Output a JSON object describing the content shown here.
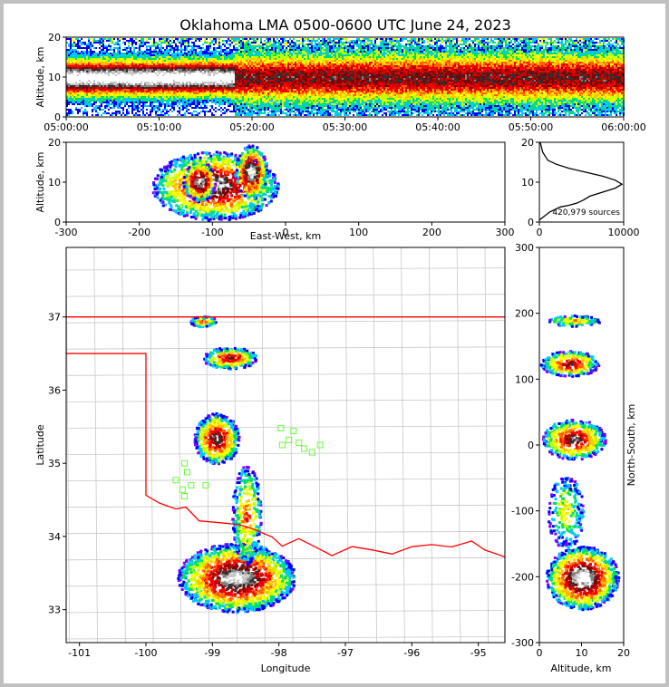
{
  "title": "Oklahoma LMA 0500-0600 UTC June 24, 2023",
  "colors": {
    "density_scale": [
      "#8000ff",
      "#0000ff",
      "#00c8ff",
      "#00e060",
      "#c8ff00",
      "#ffff00",
      "#ffc000",
      "#ff6000",
      "#ff0000",
      "#d00000",
      "#800000",
      "#303030",
      "#808080",
      "#c8c8c8",
      "#ffffff"
    ],
    "state_border": "#ff0000",
    "county_lines": "#c8c8c8",
    "station_markers": "#66ff33"
  },
  "chart_data": [
    {
      "type": "heatmap",
      "name": "altitude-time",
      "xlabel": "",
      "ylabel": "Altitude, km",
      "xticks": [
        "05:00:00",
        "05:10:00",
        "05:20:00",
        "05:30:00",
        "05:40:00",
        "05:50:00",
        "06:00:00"
      ],
      "xlim": [
        "05:00:00",
        "06:00:00"
      ],
      "ylim": [
        0,
        20
      ],
      "yticks": [
        0,
        10,
        20
      ]
    },
    {
      "type": "heatmap",
      "name": "altitude-east-west",
      "xlabel": "East-West, km",
      "ylabel": "Altitude, km",
      "xlim": [
        -300,
        300
      ],
      "xticks": [
        -300,
        -200,
        -100,
        0,
        100,
        200,
        300
      ],
      "ylim": [
        0,
        20
      ],
      "yticks": [
        0,
        10,
        20
      ]
    },
    {
      "type": "line",
      "name": "altitude-histogram",
      "xlabel": "",
      "ylabel": "",
      "xlim": [
        0,
        10000
      ],
      "xticks": [
        0,
        10000
      ],
      "ylim": [
        0,
        20
      ],
      "yticks": [
        0,
        10,
        20
      ],
      "annotation": "420,979 sources",
      "series": [
        {
          "x": [
            0,
            300,
            1200,
            2500,
            3500,
            4500,
            5200,
            6000,
            7500,
            9000,
            9800,
            9000,
            7500,
            5500,
            3500,
            2000,
            1000,
            400,
            100
          ],
          "y": [
            0.5,
            1,
            2.5,
            3.8,
            4.2,
            4.8,
            5.5,
            6.5,
            7.5,
            8.5,
            9.5,
            10.5,
            11.5,
            12.5,
            13.5,
            14.5,
            15.5,
            17.5,
            20
          ]
        }
      ]
    },
    {
      "type": "heatmap",
      "name": "plan-view",
      "xlabel": "Longitude",
      "ylabel": "Latitude",
      "xlim": [
        -101.2,
        -94.6
      ],
      "xticks": [
        -101,
        -100,
        -99,
        -98,
        -97,
        -96,
        -95
      ],
      "ylim": [
        32.55,
        37.95
      ],
      "yticks": [
        33,
        34,
        35,
        36,
        37
      ],
      "stations": [
        [
          -99.42,
          35.0
        ],
        [
          -99.55,
          34.77
        ],
        [
          -99.45,
          34.64
        ],
        [
          -99.42,
          34.55
        ],
        [
          -99.32,
          34.7
        ],
        [
          -99.38,
          34.88
        ],
        [
          -99.1,
          34.7
        ],
        [
          -97.97,
          35.48
        ],
        [
          -97.85,
          35.32
        ],
        [
          -97.95,
          35.25
        ],
        [
          -97.78,
          35.44
        ],
        [
          -97.62,
          35.2
        ],
        [
          -97.5,
          35.15
        ],
        [
          -97.38,
          35.25
        ],
        [
          -97.7,
          35.28
        ]
      ]
    },
    {
      "type": "heatmap",
      "name": "north-south-altitude",
      "xlabel": "Altitude, km",
      "ylabel": "North-South, km",
      "xlim": [
        0,
        20
      ],
      "xticks": [
        0,
        10,
        20
      ],
      "ylim": [
        -300,
        300
      ],
      "yticks": [
        -300,
        -200,
        -100,
        0,
        100,
        200,
        300
      ]
    }
  ]
}
